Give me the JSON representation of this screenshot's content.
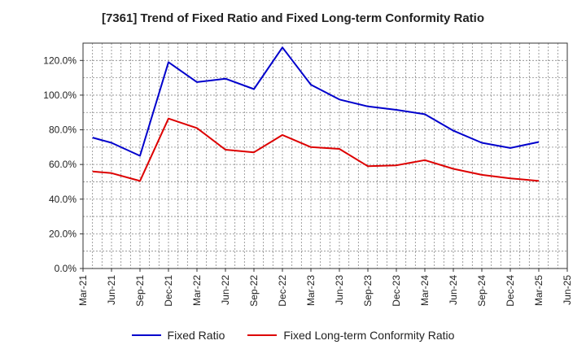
{
  "chart_data": {
    "type": "line",
    "title": "[7361]  Trend of Fixed Ratio and Fixed Long-term Conformity Ratio",
    "x_ticks": [
      "Mar-21",
      "Jun-21",
      "Sep-21",
      "Dec-21",
      "Mar-22",
      "Jun-22",
      "Sep-22",
      "Dec-22",
      "Mar-23",
      "Jun-23",
      "Sep-23",
      "Dec-23",
      "Mar-24",
      "Jun-24",
      "Sep-24",
      "Dec-24",
      "Mar-25",
      "Jun-25"
    ],
    "x": [
      "Apr-21",
      "Jun-21",
      "Sep-21",
      "Dec-21",
      "Mar-22",
      "Jun-22",
      "Sep-22",
      "Dec-22",
      "Mar-23",
      "Jun-23",
      "Sep-23",
      "Dec-23",
      "Mar-24",
      "Jun-24",
      "Sep-24",
      "Dec-24",
      "Mar-25"
    ],
    "ylim": [
      0,
      130
    ],
    "y_ticks": [
      "0.0%",
      "20.0%",
      "40.0%",
      "60.0%",
      "80.0%",
      "100.0%",
      "120.0%"
    ],
    "grid": true,
    "legend_position": "bottom",
    "series": [
      {
        "name": "Fixed Ratio",
        "color": "#0000cc",
        "values": [
          75.5,
          72.5,
          65.0,
          119.0,
          107.5,
          109.5,
          103.5,
          127.5,
          106.0,
          97.5,
          93.5,
          91.5,
          89.0,
          79.5,
          72.5,
          69.5,
          73.0
        ]
      },
      {
        "name": "Fixed Long-term Conformity Ratio",
        "color": "#dd0000",
        "values": [
          56.0,
          55.0,
          50.5,
          86.5,
          81.0,
          68.5,
          67.0,
          77.0,
          70.0,
          69.0,
          59.0,
          59.5,
          62.5,
          57.5,
          54.0,
          52.0,
          50.5
        ]
      }
    ]
  }
}
